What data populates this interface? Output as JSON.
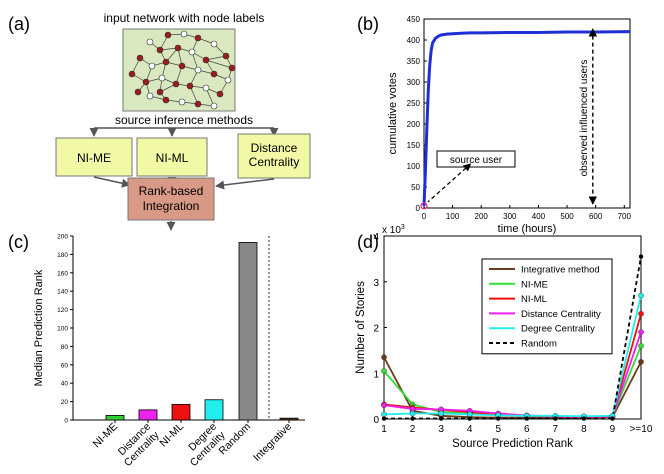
{
  "panel_labels": {
    "a": "(a)",
    "b": "(b)",
    "c": "(c)",
    "d": "(d)"
  },
  "diagram": {
    "title": "input network with node labels",
    "methods_label": "source inference methods",
    "methods": [
      "NI-ME",
      "NI-ML",
      "Distance Centrality"
    ],
    "integration_label": "Rank-based Integration",
    "colors": {
      "network_bg": "#d9e8bf",
      "method_box": "#f2f9a6",
      "integration_box": "#d89a86",
      "node_filled": "#9b1c1c",
      "node_open": "#ffffff"
    }
  },
  "chart_data": [
    {
      "id": "b",
      "type": "line",
      "title": "",
      "xlabel": "time (hours)",
      "ylabel": "cumulative votes",
      "xlim": [
        0,
        720
      ],
      "ylim": [
        0,
        450
      ],
      "xticks": [
        0,
        100,
        200,
        300,
        400,
        500,
        600,
        700
      ],
      "yticks": [
        0,
        50,
        100,
        150,
        200,
        250,
        300,
        350,
        400,
        450
      ],
      "series": [
        {
          "color": "#1f2fd6",
          "x": [
            0,
            5,
            10,
            15,
            20,
            25,
            30,
            40,
            50,
            60,
            80,
            100,
            130,
            160,
            200,
            300,
            400,
            500,
            600,
            720
          ],
          "y": [
            5,
            90,
            190,
            280,
            340,
            375,
            393,
            404,
            409,
            412,
            414,
            415,
            416,
            417,
            417,
            418,
            418,
            419,
            419,
            420
          ]
        }
      ],
      "annotations": [
        {
          "text": "source user",
          "x": 0,
          "y": 5
        },
        {
          "text": "observed influenced users",
          "x": 590,
          "y": 420
        }
      ]
    },
    {
      "id": "c",
      "type": "bar",
      "title": "",
      "xlabel": "",
      "ylabel": "Median Prediction Rank",
      "ylim": [
        0,
        200
      ],
      "yticks": [
        0,
        20,
        40,
        60,
        80,
        100,
        120,
        140,
        160,
        180,
        200
      ],
      "categories": [
        "NI-ME",
        "Distance Centrality",
        "NI-ML",
        "Degree Centrality",
        "Random",
        "Integrative"
      ],
      "values": [
        5,
        11,
        17,
        22,
        193,
        2
      ],
      "colors": [
        "#33cc33",
        "#ee22ee",
        "#ee1111",
        "#22eeee",
        "#888888",
        "#5a3a1a"
      ]
    },
    {
      "id": "d",
      "type": "line",
      "title": "",
      "xlabel": "Source Prediction Rank",
      "ylabel": "Number of Stories",
      "y_multiplier": "x 10",
      "y_multiplier_exp": "3",
      "ylim": [
        0,
        4
      ],
      "yticks": [
        0,
        1,
        2,
        3,
        4
      ],
      "categories": [
        "1",
        "2",
        "3",
        "4",
        "5",
        "6",
        "7",
        "8",
        "9",
        ">=10"
      ],
      "legend_position": "top-right",
      "series": [
        {
          "name": "Integrative method",
          "color": "#6b3a1b",
          "dash": false,
          "values": [
            1.35,
            0.18,
            0.07,
            0.04,
            0.03,
            0.03,
            0.03,
            0.03,
            0.04,
            1.25
          ]
        },
        {
          "name": "NI-ME",
          "color": "#33dd33",
          "dash": false,
          "values": [
            1.05,
            0.32,
            0.15,
            0.12,
            0.1,
            0.07,
            0.06,
            0.05,
            0.06,
            1.6
          ]
        },
        {
          "name": "NI-ML",
          "color": "#ee1111",
          "dash": false,
          "values": [
            0.32,
            0.25,
            0.2,
            0.15,
            0.1,
            0.07,
            0.05,
            0.04,
            0.05,
            2.3
          ]
        },
        {
          "name": "Distance Centrality",
          "color": "#ee22ee",
          "dash": false,
          "values": [
            0.3,
            0.22,
            0.21,
            0.18,
            0.12,
            0.08,
            0.06,
            0.05,
            0.06,
            1.9
          ]
        },
        {
          "name": "Degree Centrality",
          "color": "#22eeee",
          "dash": false,
          "values": [
            0.1,
            0.12,
            0.12,
            0.1,
            0.08,
            0.07,
            0.07,
            0.06,
            0.07,
            2.7
          ]
        },
        {
          "name": "Random",
          "color": "#000000",
          "dash": true,
          "values": [
            0.01,
            0.01,
            0.01,
            0.01,
            0.01,
            0.01,
            0.01,
            0.01,
            0.01,
            3.55
          ]
        }
      ]
    }
  ]
}
